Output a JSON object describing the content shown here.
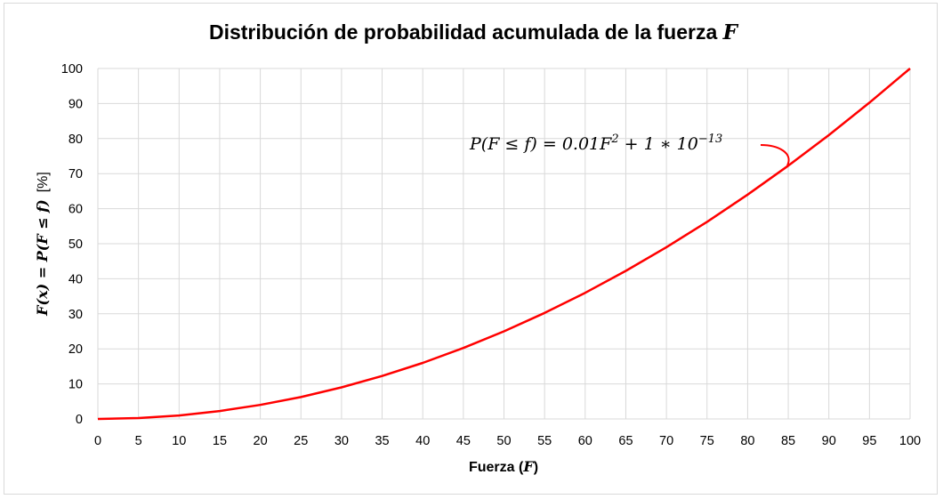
{
  "chart_data": {
    "type": "line",
    "title": "Distribución de probabilidad acumulada de la fuerza ",
    "title_var": "F",
    "xlabel": "Fuerza (",
    "xlabel_var": "F",
    "xlabel_end": ")",
    "ylabel": "F(x) = P(F ≤ f)",
    "ylabel_unit": "[%]",
    "xlim": [
      0,
      100
    ],
    "ylim": [
      0,
      100
    ],
    "x_ticks": [
      0,
      5,
      10,
      15,
      20,
      25,
      30,
      35,
      40,
      45,
      50,
      55,
      60,
      65,
      70,
      75,
      80,
      85,
      90,
      95,
      100
    ],
    "y_ticks": [
      0,
      10,
      20,
      30,
      40,
      50,
      60,
      70,
      80,
      90,
      100
    ],
    "grid": true,
    "legend": "none",
    "series": [
      {
        "color": "#ff0000",
        "x": [
          0,
          5,
          10,
          15,
          20,
          25,
          30,
          35,
          40,
          45,
          50,
          55,
          60,
          65,
          70,
          75,
          80,
          85,
          90,
          95,
          100
        ],
        "y": [
          0,
          0.25,
          1,
          2.25,
          4,
          6.25,
          9,
          12.25,
          16,
          20.25,
          25,
          30.25,
          36,
          42.25,
          49,
          56.25,
          64,
          72.25,
          81,
          90.25,
          100
        ]
      }
    ],
    "annotation": {
      "main": "P(F ≤ f) = 0.01F",
      "sup1": "2",
      "mid": " + 1 ∗ 10",
      "sup2": "−13",
      "target_x": 85,
      "target_y": 72.25
    }
  }
}
